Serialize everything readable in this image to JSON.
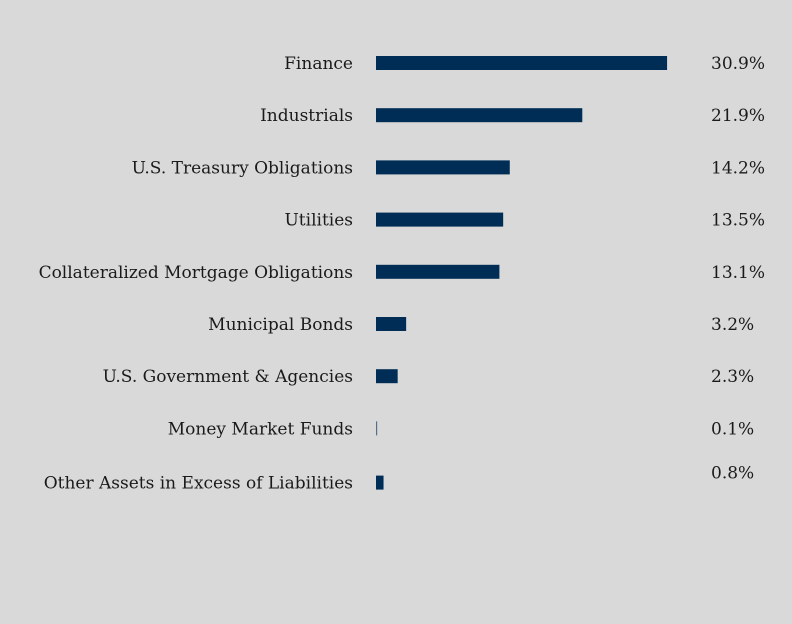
{
  "chart_data": {
    "type": "bar",
    "orientation": "horizontal",
    "categories": [
      "Finance",
      "Industrials",
      "U.S. Treasury Obligations",
      "Utilities",
      "Collateralized Mortgage Obligations",
      "Municipal Bonds",
      "U.S. Government & Agencies",
      "Money Market Funds",
      "Other Assets in Excess of Liabilities"
    ],
    "values": [
      30.9,
      21.9,
      14.2,
      13.5,
      13.1,
      3.2,
      2.3,
      0.1,
      0.8
    ],
    "value_labels": [
      "30.9%",
      "21.9%",
      "14.2%",
      "13.5%",
      "13.1%",
      "3.2%",
      "2.3%",
      "0.1%",
      "0.8%"
    ],
    "title": "",
    "xlabel": "",
    "ylabel": "",
    "grid": false,
    "legend": "none",
    "bar_color": "#002d55",
    "background_color": "#d9d9d9"
  }
}
